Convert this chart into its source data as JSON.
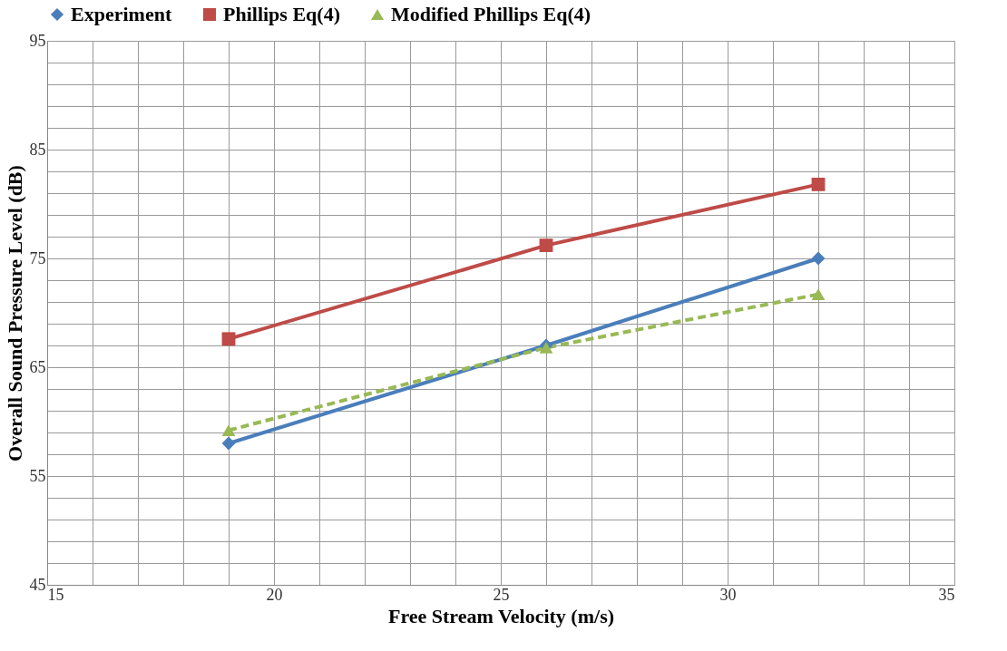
{
  "chart_data": {
    "type": "line",
    "xlabel": "Free Stream Velocity (m/s)",
    "ylabel": "Overall Sound Pressure Level (dB)",
    "x": [
      19,
      26,
      32
    ],
    "series": [
      {
        "name": "Experiment",
        "color": "#4a7ebb",
        "values": [
          58.0,
          67.0,
          75.0
        ],
        "marker": "diamond",
        "line_style": "solid"
      },
      {
        "name": "Phillips Eq(4)",
        "color": "#be4b48",
        "values": [
          67.6,
          76.2,
          81.8
        ],
        "marker": "square",
        "line_style": "solid"
      },
      {
        "name": "Modified Phillips Eq(4)",
        "color": "#98b954",
        "values": [
          59.2,
          66.8,
          71.7
        ],
        "marker": "triangle",
        "line_style": "dashed"
      }
    ],
    "xlim": [
      15,
      35
    ],
    "xticks": [
      15,
      {
        "value": 16,
        "label": null
      },
      {
        "value": 17,
        "label": null
      },
      {
        "value": 18,
        "label": null
      },
      {
        "value": 19,
        "label": null
      },
      20,
      {
        "value": 21,
        "label": null
      },
      {
        "value": 22,
        "label": null
      },
      {
        "value": 23,
        "label": null
      },
      {
        "value": 24,
        "label": null
      },
      25,
      {
        "value": 26,
        "label": null
      },
      {
        "value": 27,
        "label": null
      },
      {
        "value": 28,
        "label": null
      },
      {
        "value": 29,
        "label": null
      },
      30,
      {
        "value": 31,
        "label": null
      },
      {
        "value": 32,
        "label": null
      },
      {
        "value": 33,
        "label": null
      },
      {
        "value": 34,
        "label": null
      },
      35
    ],
    "ylim": [
      45,
      95
    ],
    "yticks": [
      45,
      {
        "value": 47,
        "label": null
      },
      {
        "value": 49,
        "label": null
      },
      {
        "value": 51,
        "label": null
      },
      {
        "value": 53,
        "label": null
      },
      55,
      {
        "value": 57,
        "label": null
      },
      {
        "value": 59,
        "label": null
      },
      {
        "value": 61,
        "label": null
      },
      {
        "value": 63,
        "label": null
      },
      65,
      {
        "value": 67,
        "label": null
      },
      {
        "value": 69,
        "label": null
      },
      {
        "value": 71,
        "label": null
      },
      {
        "value": 73,
        "label": null
      },
      75,
      {
        "value": 77,
        "label": null
      },
      {
        "value": 79,
        "label": null
      },
      {
        "value": 81,
        "label": null
      },
      {
        "value": 83,
        "label": null
      },
      85,
      {
        "value": 87,
        "label": null
      },
      {
        "value": 89,
        "label": null
      },
      {
        "value": 91,
        "label": null
      },
      {
        "value": 93,
        "label": null
      },
      95
    ],
    "grid": true,
    "legend": "top"
  }
}
